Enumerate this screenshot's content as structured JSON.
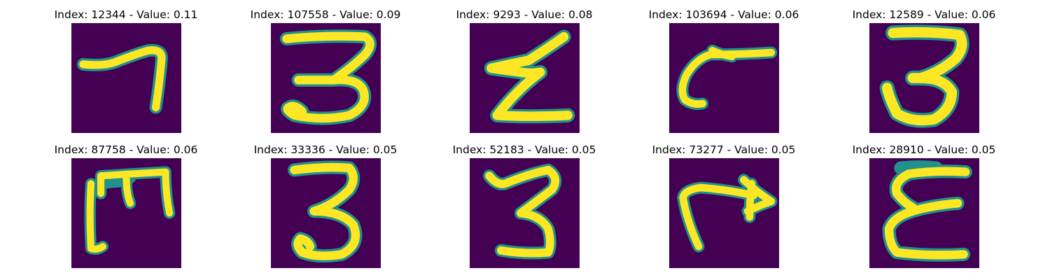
{
  "figure": {
    "colors": {
      "background": "#440154",
      "stroke": "#fde725",
      "edge": "#21918c"
    },
    "panels": [
      {
        "title": "Index: 12344 - Value: 0.11",
        "glyph": "7-like stroke"
      },
      {
        "title": "Index: 107558 - Value: 0.09",
        "glyph": "3"
      },
      {
        "title": "Index: 9293 - Value: 0.08",
        "glyph": "zigzag Z"
      },
      {
        "title": "Index: 103694 - Value: 0.06",
        "glyph": "hook stroke"
      },
      {
        "title": "Index: 12589 - Value: 0.06",
        "glyph": "3"
      },
      {
        "title": "Index: 87758 - Value: 0.06",
        "glyph": "rotated M"
      },
      {
        "title": "Index: 33336 - Value: 0.05",
        "glyph": "3"
      },
      {
        "title": "Index: 52183 - Value: 0.05",
        "glyph": "3"
      },
      {
        "title": "Index: 73277 - Value: 0.05",
        "glyph": "hook with arrow"
      },
      {
        "title": "Index: 28910 - Value: 0.05",
        "glyph": "E-like stroke"
      }
    ]
  }
}
